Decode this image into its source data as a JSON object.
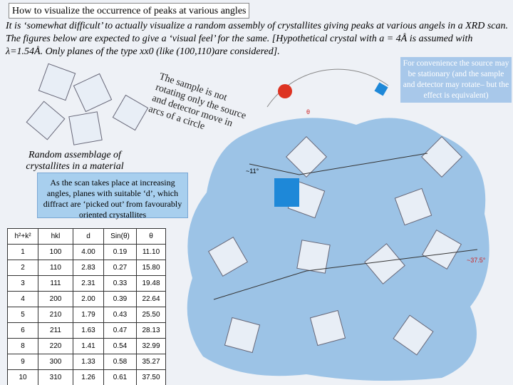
{
  "title": "How to visualize the occurrence of peaks at various angles",
  "intro": "It is ‘somewhat difficult’ to actually visualize a random assembly of crystallites giving peaks at various angels in a XRD scan. The figures below are expected to give a ‘visual feel’ for the same. [Hypothetical crystal with a = 4Å is assumed with λ=1.54Å. Only planes of the type xx0 (like (100,110)are considered].",
  "note": "For convenience the source may be stationary (and the sample and detector may rotate– but the effect is equivalent)",
  "rotated_note": "The sample is not rotating only the source and detector move in arcs of a circle",
  "caption": "Random assemblage of crystallites in a material",
  "callout": "As the scan takes place at increasing angles, planes with suitable ‘d’, which diffract are ‘picked out’ from favourably oriented crystallites",
  "diagram": {
    "theta": "θ",
    "angle_low": "~11°",
    "angle_high": "~37.5°"
  },
  "table": {
    "header": [
      "h²+k²",
      "hkl",
      "d",
      "Sin(θ)",
      "θ"
    ],
    "rows": [
      [
        "1",
        "100",
        "4.00",
        "0.19",
        "11.10"
      ],
      [
        "2",
        "110",
        "2.83",
        "0.27",
        "15.80"
      ],
      [
        "3",
        "111",
        "2.31",
        "0.33",
        "19.48"
      ],
      [
        "4",
        "200",
        "2.00",
        "0.39",
        "22.64"
      ],
      [
        "5",
        "210",
        "1.79",
        "0.43",
        "25.50"
      ],
      [
        "6",
        "211",
        "1.63",
        "0.47",
        "28.13"
      ],
      [
        "8",
        "220",
        "1.41",
        "0.54",
        "32.99"
      ],
      [
        "9",
        "300",
        "1.33",
        "0.58",
        "35.27"
      ],
      [
        "10",
        "310",
        "1.26",
        "0.61",
        "37.50"
      ]
    ]
  }
}
